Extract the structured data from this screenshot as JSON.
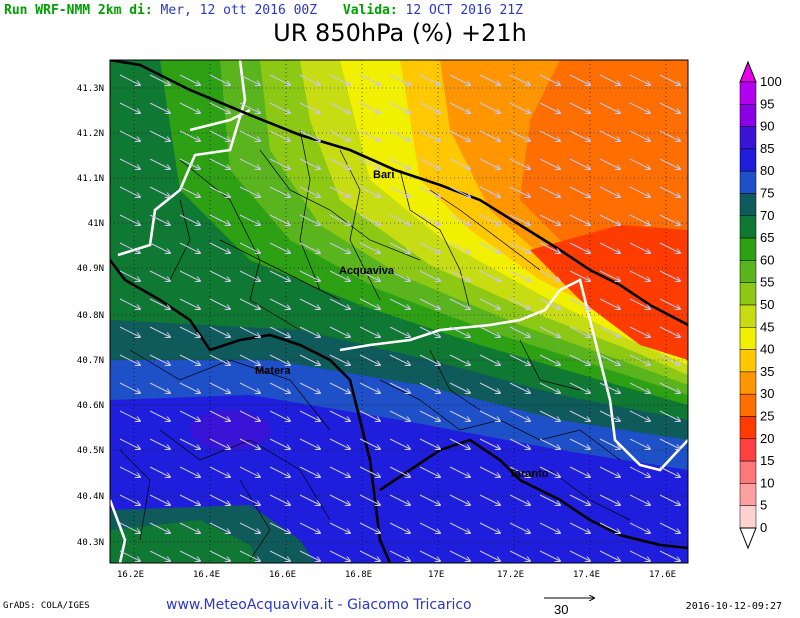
{
  "header": {
    "run_label": "Run WRF-NMM 2km di:",
    "run_value": "Mer, 12 ott 2016 00Z",
    "valid_label": "Valida:",
    "valid_value": "12 OCT 2016 21Z"
  },
  "title": "UR 850hPa (%) +21h",
  "map": {
    "lon_labels": [
      "16.2E",
      "16.4E",
      "16.6E",
      "16.8E",
      "17E",
      "17.2E",
      "17.4E",
      "17.6E"
    ],
    "lat_labels": [
      "41.3N",
      "41.2N",
      "41.1N",
      "41N",
      "40.9N",
      "40.8N",
      "40.7N",
      "40.6N",
      "40.5N",
      "40.4N",
      "40.3N"
    ],
    "cities": [
      {
        "name": "Bari"
      },
      {
        "name": "Acquaviva"
      },
      {
        "name": "Matera"
      },
      {
        "name": "Taranto"
      }
    ]
  },
  "colorbar": {
    "levels": [
      "100",
      "95",
      "90",
      "85",
      "80",
      "75",
      "70",
      "65",
      "60",
      "55",
      "50",
      "45",
      "40",
      "35",
      "30",
      "25",
      "20",
      "15",
      "10",
      "5",
      "0"
    ],
    "colors": [
      "#e800e8",
      "#b400f0",
      "#8c00e6",
      "#3a14d6",
      "#1e1edc",
      "#1e50c8",
      "#0f5a5a",
      "#0f7832",
      "#2da014",
      "#5ab41e",
      "#8cc814",
      "#c8dc14",
      "#f0f000",
      "#ffc800",
      "#ff9600",
      "#ff6e00",
      "#ff3c00",
      "#ff4040",
      "#ff7878",
      "#ffa0a0",
      "#ffd2d2"
    ]
  },
  "vector_reference": {
    "value": "30"
  },
  "footer": {
    "grads": "GrADS: COLA/IGES",
    "site": "www.MeteoAcquaviva.it - Giacomo Tricarico",
    "timestamp": "2016-10-12-09:27"
  }
}
